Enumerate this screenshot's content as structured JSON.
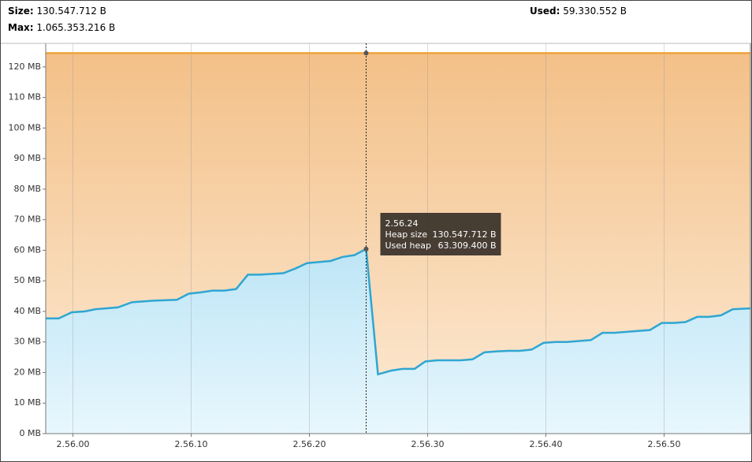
{
  "header": {
    "size_label": "Size:",
    "size": "130.547.712 B",
    "max_label": "Max:",
    "max": "1.065.353.216 B",
    "used_label": "Used:",
    "used": "59.330.552 B"
  },
  "chart_data": {
    "type": "area",
    "xlim": [
      10557.7,
      10617.3
    ],
    "xticks": [
      {
        "value": 10560,
        "label": "2.56.00"
      },
      {
        "value": 10570,
        "label": "2.56.10"
      },
      {
        "value": 10580,
        "label": "2.56.20"
      },
      {
        "value": 10590,
        "label": "2.56.30"
      },
      {
        "value": 10600,
        "label": "2.56.40"
      },
      {
        "value": 10610,
        "label": "2.56.50"
      }
    ],
    "ylim": [
      0,
      127.7
    ],
    "yticks": [
      {
        "value": 0,
        "label": "0 MB"
      },
      {
        "value": 10,
        "label": "10 MB"
      },
      {
        "value": 20,
        "label": "20 MB"
      },
      {
        "value": 30,
        "label": "30 MB"
      },
      {
        "value": 40,
        "label": "40 MB"
      },
      {
        "value": 50,
        "label": "50 MB"
      },
      {
        "value": 60,
        "label": "60 MB"
      },
      {
        "value": 70,
        "label": "70 MB"
      },
      {
        "value": 80,
        "label": "80 MB"
      },
      {
        "value": 90,
        "label": "90 MB"
      },
      {
        "value": 100,
        "label": "100 MB"
      },
      {
        "value": 110,
        "label": "110 MB"
      },
      {
        "value": 120,
        "label": "120 MB"
      }
    ],
    "grid": true,
    "series": [
      {
        "name": "Heap size",
        "color": "#f0a33c",
        "x": [
          10557.7,
          10617.3
        ],
        "values": [
          124.5,
          124.5
        ]
      },
      {
        "name": "Used heap",
        "color": "#2fa6d2",
        "x": [
          10557.7,
          10558.8,
          10559.9,
          10561,
          10561.9,
          10563.8,
          10565,
          10566.8,
          10568.8,
          10569.8,
          10570.8,
          10571.8,
          10572.8,
          10573.8,
          10574.8,
          10575.8,
          10577.8,
          10578.8,
          10579.8,
          10581.8,
          10582.8,
          10583.8,
          10584.8,
          10585.8,
          10586.9,
          10587.9,
          10588.9,
          10589.8,
          10590.8,
          10592.8,
          10593.8,
          10594.8,
          10595.8,
          10596.8,
          10597.8,
          10598.8,
          10599.8,
          10600.8,
          10601.8,
          10602.8,
          10603.8,
          10604.8,
          10605.8,
          10607.8,
          10608.8,
          10609.8,
          10610.8,
          10611.8,
          10612.8,
          10613.8,
          10614.8,
          10615.8,
          10617.3
        ],
        "values": [
          37.7,
          37.7,
          39.7,
          40,
          40.7,
          41.3,
          43,
          43.5,
          43.8,
          45.8,
          46.2,
          46.8,
          46.8,
          47.3,
          52,
          52,
          52.5,
          54,
          55.8,
          56.5,
          57.8,
          58.4,
          60.4,
          19.4,
          20.6,
          21.2,
          21.2,
          23.6,
          24,
          24,
          24.3,
          26.6,
          26.9,
          27.1,
          27.1,
          27.5,
          29.7,
          30,
          30,
          30.3,
          30.6,
          33,
          33,
          33.6,
          33.9,
          36.2,
          36.2,
          36.5,
          38.2,
          38.2,
          38.7,
          40.7,
          41
        ]
      }
    ],
    "cursor": {
      "x": 10584.8,
      "time": "2.56.24",
      "heap_label": "Heap size",
      "heap_value": "130.547.712 B",
      "used_label": "Used heap",
      "used_value": "63.309.400 B"
    }
  }
}
